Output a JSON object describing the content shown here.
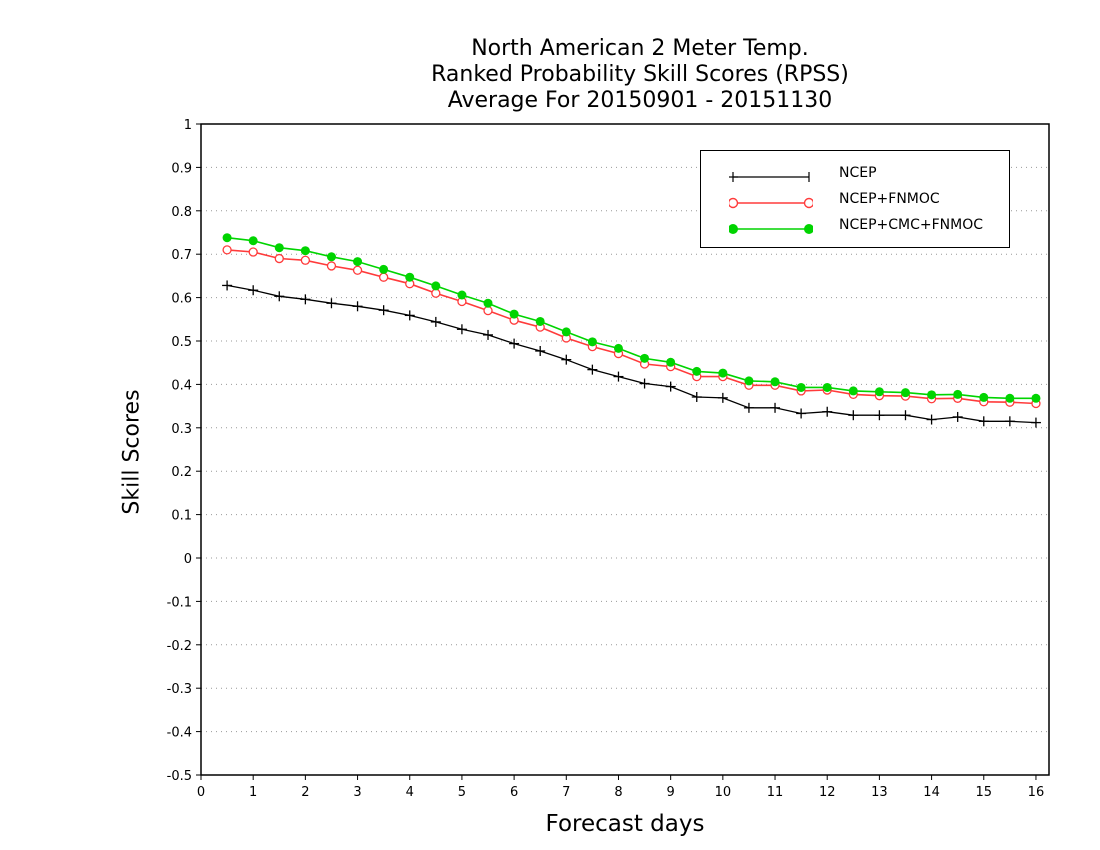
{
  "title": {
    "line1": "North American 2 Meter Temp.",
    "line2": "Ranked Probability Skill Scores (RPSS)",
    "line3": "Average For 20150901 - 20151130"
  },
  "chart_data": {
    "type": "line",
    "xlabel": "Forecast days",
    "ylabel": "Skill Scores",
    "xlim": [
      0,
      16.25
    ],
    "ylim": [
      -0.5,
      1
    ],
    "x_ticks": [
      0,
      1,
      2,
      3,
      4,
      5,
      6,
      7,
      8,
      9,
      10,
      11,
      12,
      13,
      14,
      15,
      16
    ],
    "y_ticks": [
      -0.5,
      -0.4,
      -0.3,
      -0.2,
      -0.1,
      0,
      0.1,
      0.2,
      0.3,
      0.4,
      0.5,
      0.6,
      0.7,
      0.8,
      0.9,
      1
    ],
    "y_tick_labels": [
      "-0.5",
      "-0.4",
      "-0.3",
      "-0.2",
      "-0.1",
      "0",
      "0.1",
      "0.2",
      "0.3",
      "0.4",
      "0.5",
      "0.6",
      "0.7",
      "0.8",
      "0.9",
      "1"
    ],
    "grid": "horizontal dotted",
    "legend_position": "top-right",
    "x": [
      0.5,
      1,
      1.5,
      2,
      2.5,
      3,
      3.5,
      4,
      4.5,
      5,
      5.5,
      6,
      6.5,
      7,
      7.5,
      8,
      8.5,
      9,
      9.5,
      10,
      10.5,
      11,
      11.5,
      12,
      12.5,
      13,
      13.5,
      14,
      14.5,
      15,
      15.5,
      16
    ],
    "series": [
      {
        "name": "NCEP",
        "color": "#000000",
        "marker": "plus",
        "values": [
          0.628,
          0.617,
          0.603,
          0.596,
          0.587,
          0.58,
          0.571,
          0.559,
          0.544,
          0.527,
          0.514,
          0.494,
          0.477,
          0.457,
          0.434,
          0.418,
          0.402,
          0.395,
          0.371,
          0.369,
          0.346,
          0.346,
          0.333,
          0.337,
          0.329,
          0.329,
          0.329,
          0.319,
          0.325,
          0.315,
          0.315,
          0.312
        ]
      },
      {
        "name": "NCEP+FNMOC",
        "color": "#ff3b3b",
        "marker": "open-circle",
        "values": [
          0.71,
          0.705,
          0.69,
          0.686,
          0.673,
          0.663,
          0.647,
          0.632,
          0.61,
          0.591,
          0.57,
          0.548,
          0.532,
          0.507,
          0.487,
          0.471,
          0.447,
          0.441,
          0.418,
          0.418,
          0.398,
          0.398,
          0.385,
          0.387,
          0.377,
          0.374,
          0.373,
          0.367,
          0.368,
          0.36,
          0.359,
          0.356
        ]
      },
      {
        "name": "NCEP+CMC+FNMOC",
        "color": "#00d400",
        "marker": "filled-circle",
        "values": [
          0.738,
          0.731,
          0.715,
          0.708,
          0.694,
          0.683,
          0.665,
          0.647,
          0.627,
          0.606,
          0.587,
          0.562,
          0.545,
          0.521,
          0.498,
          0.483,
          0.46,
          0.451,
          0.43,
          0.426,
          0.408,
          0.406,
          0.393,
          0.393,
          0.385,
          0.383,
          0.381,
          0.376,
          0.377,
          0.37,
          0.368,
          0.368
        ]
      }
    ]
  }
}
